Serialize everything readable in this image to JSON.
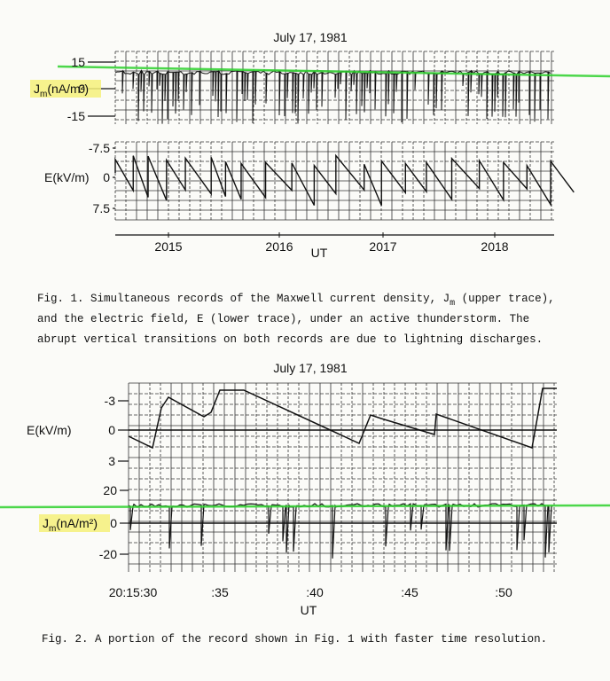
{
  "figures": [
    {
      "title": "July 17, 1981",
      "panels": [
        {
          "ylabel": {
            "symbol": "J",
            "subscript": "m",
            "unit": "(nA/m²)"
          },
          "ticks": [
            "15",
            "0",
            "-15"
          ]
        },
        {
          "ylabel": {
            "text": "E(kV/m)"
          },
          "ticks": [
            "-7.5",
            "0",
            "7.5"
          ]
        }
      ],
      "x_labels": [
        "2015",
        "2016",
        "2017",
        "2018"
      ],
      "xlabel": "UT",
      "caption": [
        {
          "before": "Fig. 1. Simultaneous records of the Maxwell current density, J",
          "subscript": "m",
          "after": " (upper trace),"
        },
        {
          "before": "and the electric field, E (lower trace), under an active thunderstorm. The"
        },
        {
          "before": "abrupt vertical transitions on both records are due to lightning discharges."
        }
      ]
    },
    {
      "title": "July 17, 1981",
      "panels": [
        {
          "ylabel": {
            "text": "E(kV/m)"
          },
          "ticks": [
            "-3",
            "0",
            "3"
          ]
        },
        {
          "ylabel": {
            "symbol": "J",
            "subscript": "m",
            "unit": "(nA/m²)"
          },
          "ticks": [
            "20",
            "0",
            "-20"
          ]
        }
      ],
      "x_labels": [
        "20:15:30",
        ":35",
        ":40",
        ":45",
        ":50"
      ],
      "xlabel": "UT",
      "caption": [
        {
          "before": "Fig. 2. A portion of the record shown in Fig. 1 with faster time resolution."
        }
      ]
    }
  ]
}
